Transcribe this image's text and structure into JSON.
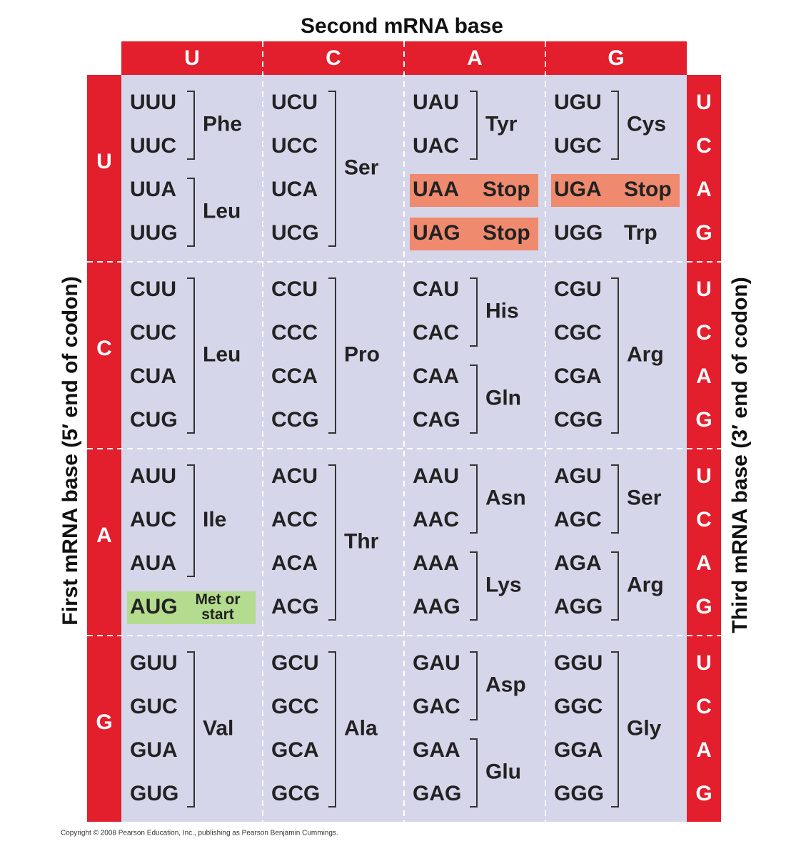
{
  "second_mRNA_base": {
    "title": "Second mRNA base",
    "bases": [
      "U",
      "C",
      "A",
      "G"
    ]
  },
  "first_mRNA_base": {
    "title": "First mRNA base (5′ end of codon)"
  },
  "third_mRNA_base": {
    "title": "Third mRNA base (3′ end of codon)"
  },
  "rows": [
    {
      "first": "U",
      "third": [
        "U",
        "C",
        "A",
        "G"
      ],
      "cells": [
        {
          "groups": [
            {
              "codons": [
                "UUU",
                "UUC"
              ],
              "amino": "Phe"
            },
            {
              "codons": [
                "UUA",
                "UUG"
              ],
              "amino": "Leu"
            }
          ]
        },
        {
          "groups": [
            {
              "codons": [
                "UCU",
                "UCC",
                "UCA",
                "UCG"
              ],
              "amino": "Ser"
            }
          ]
        },
        {
          "groups": [
            {
              "codons": [
                "UAU",
                "UAC"
              ],
              "amino": "Tyr"
            },
            {
              "codons": [
                "UAA"
              ],
              "amino": "Stop",
              "color": "#ef8a6e"
            },
            {
              "codons": [
                "UAG"
              ],
              "amino": "Stop",
              "color": "#ef8a6e"
            }
          ]
        },
        {
          "groups": [
            {
              "codons": [
                "UGU",
                "UGC"
              ],
              "amino": "Cys"
            },
            {
              "codons": [
                "UGA"
              ],
              "amino": "Stop",
              "color": "#ef8a6e"
            },
            {
              "codons": [
                "UGG"
              ],
              "amino": "Trp"
            }
          ]
        }
      ]
    },
    {
      "first": "C",
      "third": [
        "U",
        "C",
        "A",
        "G"
      ],
      "cells": [
        {
          "groups": [
            {
              "codons": [
                "CUU",
                "CUC",
                "CUA",
                "CUG"
              ],
              "amino": "Leu"
            }
          ]
        },
        {
          "groups": [
            {
              "codons": [
                "CCU",
                "CCC",
                "CCA",
                "CCG"
              ],
              "amino": "Pro"
            }
          ]
        },
        {
          "groups": [
            {
              "codons": [
                "CAU",
                "CAC"
              ],
              "amino": "His"
            },
            {
              "codons": [
                "CAA",
                "CAG"
              ],
              "amino": "Gln"
            }
          ]
        },
        {
          "groups": [
            {
              "codons": [
                "CGU",
                "CGC",
                "CGA",
                "CGG"
              ],
              "amino": "Arg"
            }
          ]
        }
      ]
    },
    {
      "first": "A",
      "third": [
        "U",
        "C",
        "A",
        "G"
      ],
      "cells": [
        {
          "groups": [
            {
              "codons": [
                "AUU",
                "AUC",
                "AUA"
              ],
              "amino": "Ile"
            },
            {
              "codons": [
                "AUG"
              ],
              "amino": "Met or start",
              "color": "#b4dc8e"
            }
          ]
        },
        {
          "groups": [
            {
              "codons": [
                "ACU",
                "ACC",
                "ACA",
                "ACG"
              ],
              "amino": "Thr"
            }
          ]
        },
        {
          "groups": [
            {
              "codons": [
                "AAU",
                "AAC"
              ],
              "amino": "Asn"
            },
            {
              "codons": [
                "AAA",
                "AAG"
              ],
              "amino": "Lys"
            }
          ]
        },
        {
          "groups": [
            {
              "codons": [
                "AGU",
                "AGC"
              ],
              "amino": "Ser"
            },
            {
              "codons": [
                "AGA",
                "AGG"
              ],
              "amino": "Arg"
            }
          ]
        }
      ]
    },
    {
      "first": "G",
      "third": [
        "U",
        "C",
        "A",
        "G"
      ],
      "cells": [
        {
          "groups": [
            {
              "codons": [
                "GUU",
                "GUC",
                "GUA",
                "GUG"
              ],
              "amino": "Val"
            }
          ]
        },
        {
          "groups": [
            {
              "codons": [
                "GCU",
                "GCC",
                "GCA",
                "GCG"
              ],
              "amino": "Ala"
            }
          ]
        },
        {
          "groups": [
            {
              "codons": [
                "GAU",
                "GAC"
              ],
              "amino": "Asp"
            },
            {
              "codons": [
                "GAA",
                "GAG"
              ],
              "amino": "Glu"
            }
          ]
        },
        {
          "groups": [
            {
              "codons": [
                "GGU",
                "GGC",
                "GGA",
                "GGG"
              ],
              "amino": "Gly"
            }
          ]
        }
      ]
    }
  ],
  "copyright": "Copyright © 2008 Pearson Education, Inc., publishing as Pearson Benjamin Cummings."
}
